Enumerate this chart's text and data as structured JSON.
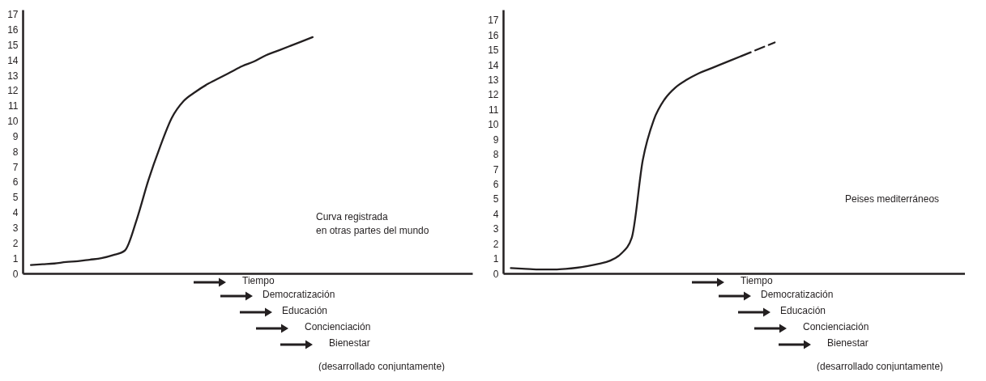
{
  "chart_data": [
    {
      "type": "line",
      "categories": [
        null,
        null,
        null,
        null,
        null,
        null,
        null,
        null,
        null,
        null,
        null,
        null,
        null,
        null,
        null,
        null,
        null,
        null,
        null,
        null,
        null,
        null,
        null,
        null,
        null,
        null,
        null,
        null,
        null,
        null,
        null,
        null,
        null,
        null,
        null,
        null,
        null,
        null
      ],
      "series": [
        {
          "color": "#231f20",
          "line_style": "solid",
          "values": [
            0.55,
            0.6,
            0.65,
            0.75,
            0.8,
            0.9,
            1.0,
            1.2,
            1.5,
            3.5,
            6.1,
            8.3,
            10.2,
            11.3,
            11.9,
            12.4,
            12.8,
            13.2,
            13.6,
            13.9,
            14.3,
            14.6,
            14.9,
            15.2,
            15.5,
            null,
            null,
            null,
            null,
            null,
            null,
            null,
            null,
            null,
            null,
            null,
            null,
            null
          ]
        }
      ],
      "ylim": [
        0,
        17.3
      ],
      "yticks": [
        0,
        1,
        2,
        3,
        4,
        5,
        6,
        7,
        8,
        9,
        10,
        11,
        12,
        13,
        14,
        15,
        16,
        17
      ],
      "tick_labels": "y",
      "grid": false,
      "annotations": [
        "Curva registrada\nen otras partes del mundo",
        "Tiempo",
        "Democratización",
        "Educación",
        "Concienciación",
        "Bienestar",
        "(desarrollado conjuntamente)"
      ]
    },
    {
      "type": "line",
      "categories": [
        null,
        null,
        null,
        null,
        null,
        null,
        null,
        null,
        null,
        null,
        null,
        null,
        null,
        null,
        null,
        null,
        null,
        null,
        null,
        null,
        null,
        null,
        null,
        null,
        null,
        null,
        null,
        null,
        null,
        null,
        null,
        null,
        null,
        null,
        null,
        null,
        null,
        null,
        null,
        null,
        null,
        null
      ],
      "series": [
        {
          "color": "#231f20",
          "line_style": "solid",
          "values": [
            0.36,
            0.32,
            0.28,
            0.26,
            0.26,
            0.3,
            0.38,
            0.5,
            0.65,
            0.85,
            1.3,
            2.4,
            7.6,
            10.3,
            11.7,
            12.5,
            13.0,
            13.4,
            13.7,
            14.0,
            14.3,
            14.6,
            null,
            null,
            null,
            null,
            null,
            null,
            null,
            null,
            null,
            null,
            null,
            null,
            null,
            null,
            null,
            null,
            null,
            null,
            null,
            null
          ]
        },
        {
          "color": "#231f20",
          "line_style": "dashed",
          "values": [
            null,
            null,
            null,
            null,
            null,
            null,
            null,
            null,
            null,
            null,
            null,
            null,
            null,
            null,
            null,
            null,
            null,
            null,
            null,
            null,
            null,
            14.6,
            14.9,
            15.2,
            15.5,
            null,
            null,
            null,
            null,
            null,
            null,
            null,
            null,
            null,
            null,
            null,
            null,
            null,
            null,
            null,
            null,
            null
          ]
        }
      ],
      "ylim": [
        0,
        17.7
      ],
      "yticks": [
        0,
        1,
        2,
        3,
        4,
        5,
        6,
        7,
        8,
        9,
        10,
        11,
        12,
        13,
        14,
        15,
        16,
        17
      ],
      "tick_labels": "y",
      "grid": false,
      "annotations": [
        "Peises mediterráneos",
        "Tiempo",
        "Democratización",
        "Educación",
        "Concienciación",
        "Bienestar",
        "(desarrollado conjuntamente)"
      ]
    }
  ]
}
